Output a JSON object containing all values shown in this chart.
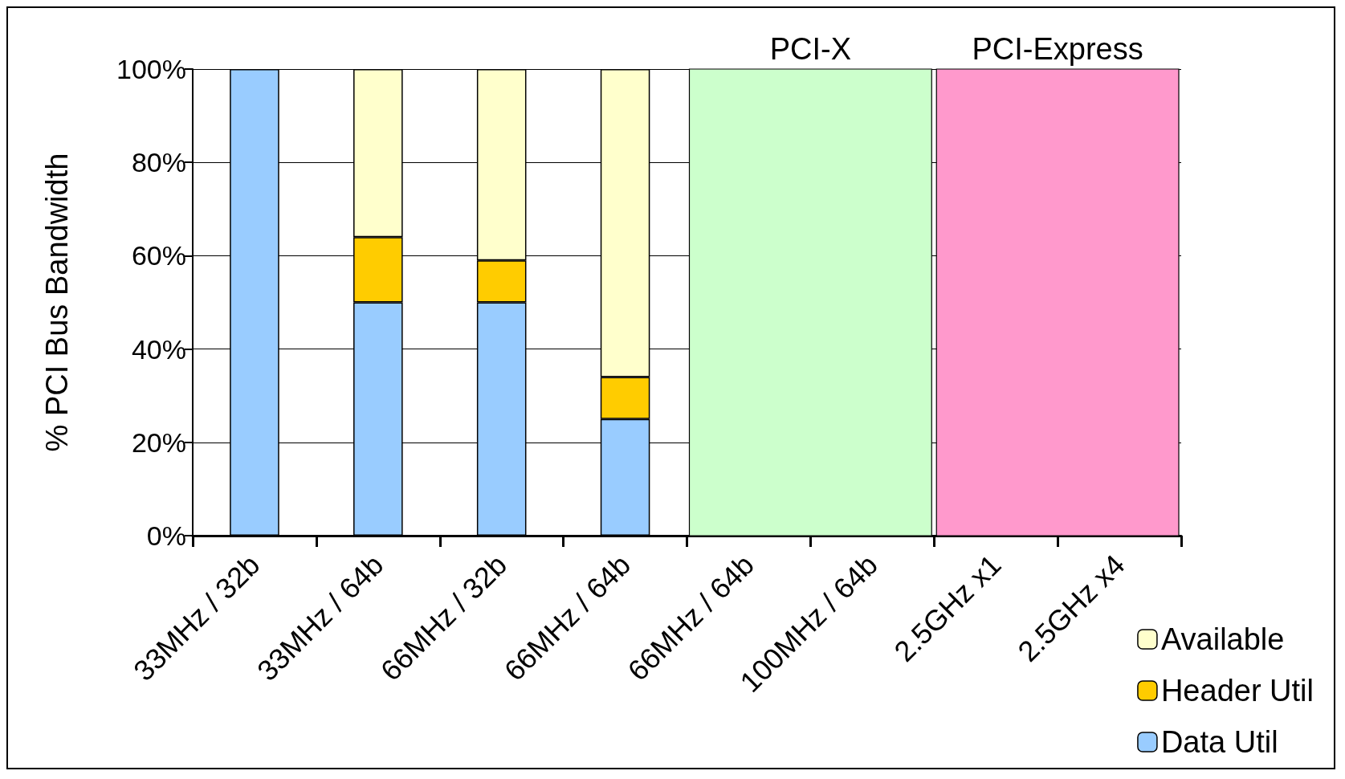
{
  "chart_data": {
    "type": "bar",
    "stacked": true,
    "ylabel": "% PCI Bus Bandwidth",
    "categories": [
      "33MHz / 32b",
      "33MHz / 64b",
      "66MHz / 32b",
      "66MHz / 64b",
      "66MHz / 64b",
      "100MHz / 64b",
      "2.5GHz x1",
      "2.5GHz x4"
    ],
    "series": [
      {
        "name": "Data Util",
        "color": "#99ccff",
        "values": [
          100,
          50,
          50,
          25,
          null,
          null,
          null,
          null
        ]
      },
      {
        "name": "Header Util",
        "color": "#ffcc00",
        "values": [
          null,
          14,
          9,
          9,
          null,
          null,
          null,
          null
        ]
      },
      {
        "name": "Available",
        "color": "#ffffcc",
        "values": [
          null,
          36,
          41,
          66,
          null,
          null,
          null,
          null
        ]
      }
    ],
    "ylim": [
      0,
      100
    ],
    "yticks": [
      {
        "value": 0,
        "label": "0%"
      },
      {
        "value": 20,
        "label": "20%"
      },
      {
        "value": 40,
        "label": "40%"
      },
      {
        "value": 60,
        "label": "60%"
      },
      {
        "value": 80,
        "label": "80%"
      },
      {
        "value": 100,
        "label": "100%"
      }
    ],
    "bands": [
      {
        "axis": "x",
        "from": "66MHz / 64b",
        "to": "100MHz / 64b",
        "label": "PCI-X",
        "color": "#ccffcc"
      },
      {
        "axis": "x",
        "from": "2.5GHz x1",
        "to": "2.5GHz x4",
        "label": "PCI-Express",
        "color": "#ff99cc"
      }
    ],
    "grid": "y",
    "legend": "bottom right"
  }
}
